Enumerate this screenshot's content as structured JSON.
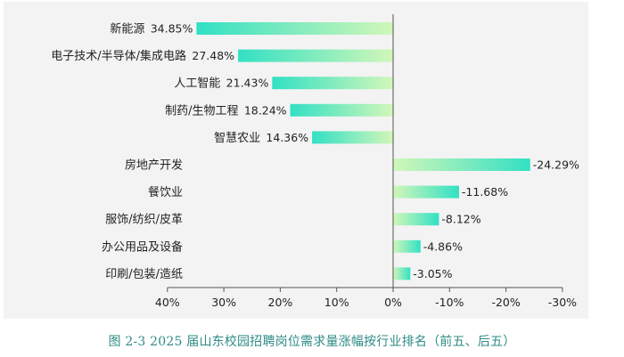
{
  "caption": "图 2-3 2025 届山东校园招聘岗位需求量涨幅按行业排名（前五、后五）",
  "chart_data": {
    "type": "bar",
    "orientation": "horizontal",
    "x_reversed": true,
    "categories": [
      "新能源",
      "电子技术/半导体/集成电路",
      "人工智能",
      "制药/生物工程",
      "智慧农业",
      "房地产开发",
      "餐饮业",
      "服饰/纺织/皮革",
      "办公用品及设备",
      "印刷/包装/造纸"
    ],
    "values": [
      34.85,
      27.48,
      21.43,
      18.24,
      14.36,
      -24.29,
      -11.68,
      -8.12,
      -4.86,
      -3.05
    ],
    "value_labels": [
      "34.85%",
      "27.48%",
      "21.43%",
      "18.24%",
      "14.36%",
      "-24.29%",
      "-11.68%",
      "-8.12%",
      "-4.86%",
      "-3.05%"
    ],
    "xlim": [
      40,
      -30
    ],
    "ticks": [
      40,
      30,
      20,
      10,
      0,
      -10,
      -20,
      -30
    ],
    "tick_labels": [
      "40%",
      "30%",
      "20%",
      "10%",
      "0%",
      "-10%",
      "-20%",
      "-30%"
    ],
    "title": "",
    "xlabel": "",
    "ylabel": "",
    "grid": false,
    "colors": {
      "gradient_dark": "#32e0c4",
      "gradient_light": "#d2f7b9",
      "axis": "#555555",
      "panel": "#f3f3f3"
    }
  }
}
